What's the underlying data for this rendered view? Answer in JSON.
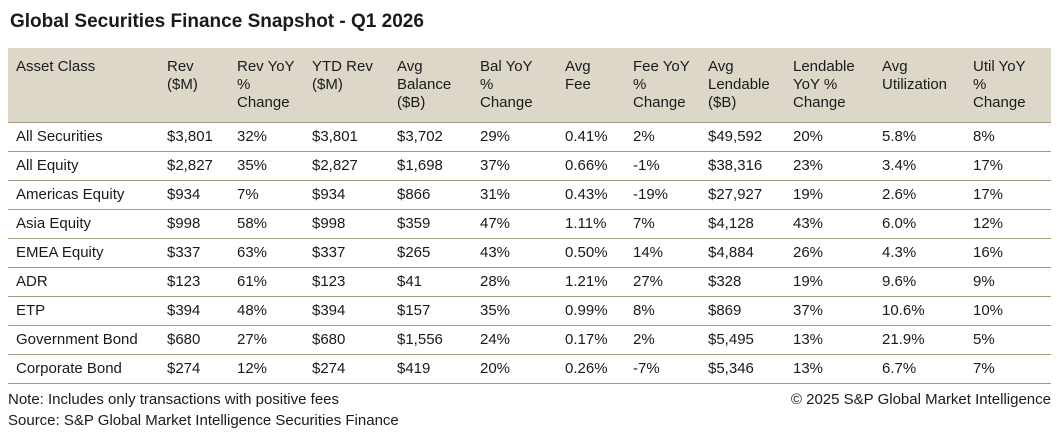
{
  "title": "Global Securities Finance Snapshot - Q1 2026",
  "chart_data": {
    "type": "table",
    "title": "Global Securities Finance Snapshot - Q1 2026",
    "columns": [
      "Asset Class",
      "Rev ($M)",
      "Rev YoY % Change",
      "YTD Rev ($M)",
      "Avg Balance ($B)",
      "Bal YoY % Change",
      "Avg Fee",
      "Fee YoY % Change",
      "Avg Lendable ($B)",
      "Lendable YoY % Change",
      "Avg Utilization",
      "Util YoY % Change"
    ],
    "header_lines": [
      [
        "Asset Class"
      ],
      [
        "Rev",
        "($M)"
      ],
      [
        "Rev YoY",
        "%",
        "Change"
      ],
      [
        "YTD Rev",
        "($M)"
      ],
      [
        "Avg",
        "Balance",
        "($B)"
      ],
      [
        "Bal YoY",
        "%",
        "Change"
      ],
      [
        "Avg",
        "Fee"
      ],
      [
        "Fee YoY",
        "%",
        "Change"
      ],
      [
        "Avg",
        "Lendable",
        "($B)"
      ],
      [
        "Lendable",
        "YoY %",
        "Change"
      ],
      [
        "Avg",
        "Utilization"
      ],
      [
        "Util YoY",
        "%",
        "Change"
      ]
    ],
    "rows": [
      [
        "All Securities",
        "$3,801",
        "32%",
        "$3,801",
        "$3,702",
        "29%",
        "0.41%",
        "2%",
        "$49,592",
        "20%",
        "5.8%",
        "8%"
      ],
      [
        "All Equity",
        "$2,827",
        "35%",
        "$2,827",
        "$1,698",
        "37%",
        "0.66%",
        "-1%",
        "$38,316",
        "23%",
        "3.4%",
        "17%"
      ],
      [
        "Americas Equity",
        "$934",
        "7%",
        "$934",
        "$866",
        "31%",
        "0.43%",
        "-19%",
        "$27,927",
        "19%",
        "2.6%",
        "17%"
      ],
      [
        "Asia Equity",
        "$998",
        "58%",
        "$998",
        "$359",
        "47%",
        "1.11%",
        "7%",
        "$4,128",
        "43%",
        "6.0%",
        "12%"
      ],
      [
        "EMEA Equity",
        "$337",
        "63%",
        "$337",
        "$265",
        "43%",
        "0.50%",
        "14%",
        "$4,884",
        "26%",
        "4.3%",
        "16%"
      ],
      [
        "ADR",
        "$123",
        "61%",
        "$123",
        "$41",
        "28%",
        "1.21%",
        "27%",
        "$328",
        "19%",
        "9.6%",
        "9%"
      ],
      [
        "ETP",
        "$394",
        "48%",
        "$394",
        "$157",
        "35%",
        "0.99%",
        "8%",
        "$869",
        "37%",
        "10.6%",
        "10%"
      ],
      [
        "Government Bond",
        "$680",
        "27%",
        "$680",
        "$1,556",
        "24%",
        "0.17%",
        "2%",
        "$5,495",
        "13%",
        "21.9%",
        "5%"
      ],
      [
        "Corporate Bond",
        "$274",
        "12%",
        "$274",
        "$419",
        "20%",
        "0.26%",
        "-7%",
        "$5,346",
        "13%",
        "6.7%",
        "7%"
      ]
    ]
  },
  "footer": {
    "note": "Note: Includes only transactions with positive fees",
    "source": "Source: S&P Global Market Intelligence Securities Finance",
    "copyright": "© 2025 S&P Global Market Intelligence"
  },
  "colors": {
    "header_bg": "#dcd7c9",
    "row_line": "#a39a82",
    "text": "#1a1a1a",
    "background": "#ffffff"
  }
}
